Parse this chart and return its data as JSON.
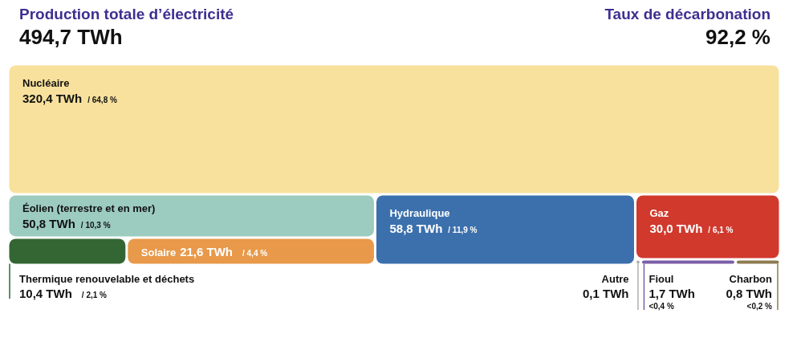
{
  "chart_data": {
    "type": "other",
    "title": "Production totale d’électricité",
    "subtitle": "494,7 TWh",
    "annotations": [
      "Taux de décarbonation",
      "92,2 %"
    ],
    "categories": [
      "Nucléaire",
      "Éolien (terrestre et en mer)",
      "Thermique renouvelable et déchets",
      "Solaire",
      "Hydraulique",
      "Gaz",
      "Autre",
      "Fioul",
      "Charbon"
    ],
    "series": [
      {
        "colors": [
          "#f8e19c",
          "#9ccbbf",
          "#336633",
          "#e8994a",
          "#3c70ad",
          "#d1392d",
          "#b0b0b0",
          "#7b5ea7",
          "#8b7b50"
        ],
        "values": [
          320.4,
          50.8,
          10.4,
          21.6,
          58.8,
          30.0,
          0.1,
          1.7,
          0.8
        ],
        "value_labels": [
          "320,4 TWh",
          "50,8 TWh",
          "10,4 TWh",
          "21,6 TWh",
          "58,8 TWh",
          "30,0 TWh",
          "0,1 TWh",
          "1,7 TWh",
          "0,8 TWh"
        ]
      },
      {
        "values": [
          64.8,
          10.3,
          2.1,
          4.4,
          11.9,
          6.1,
          null,
          null,
          null
        ],
        "value_labels": [
          "/ 64,8 %",
          "/ 10,3 %",
          "/ 2,1 %",
          "/ 4,4 %",
          "/ 11,9 %",
          "/ 6,1 %",
          null,
          "<0,4 %",
          "<0,2 %"
        ]
      }
    ]
  }
}
